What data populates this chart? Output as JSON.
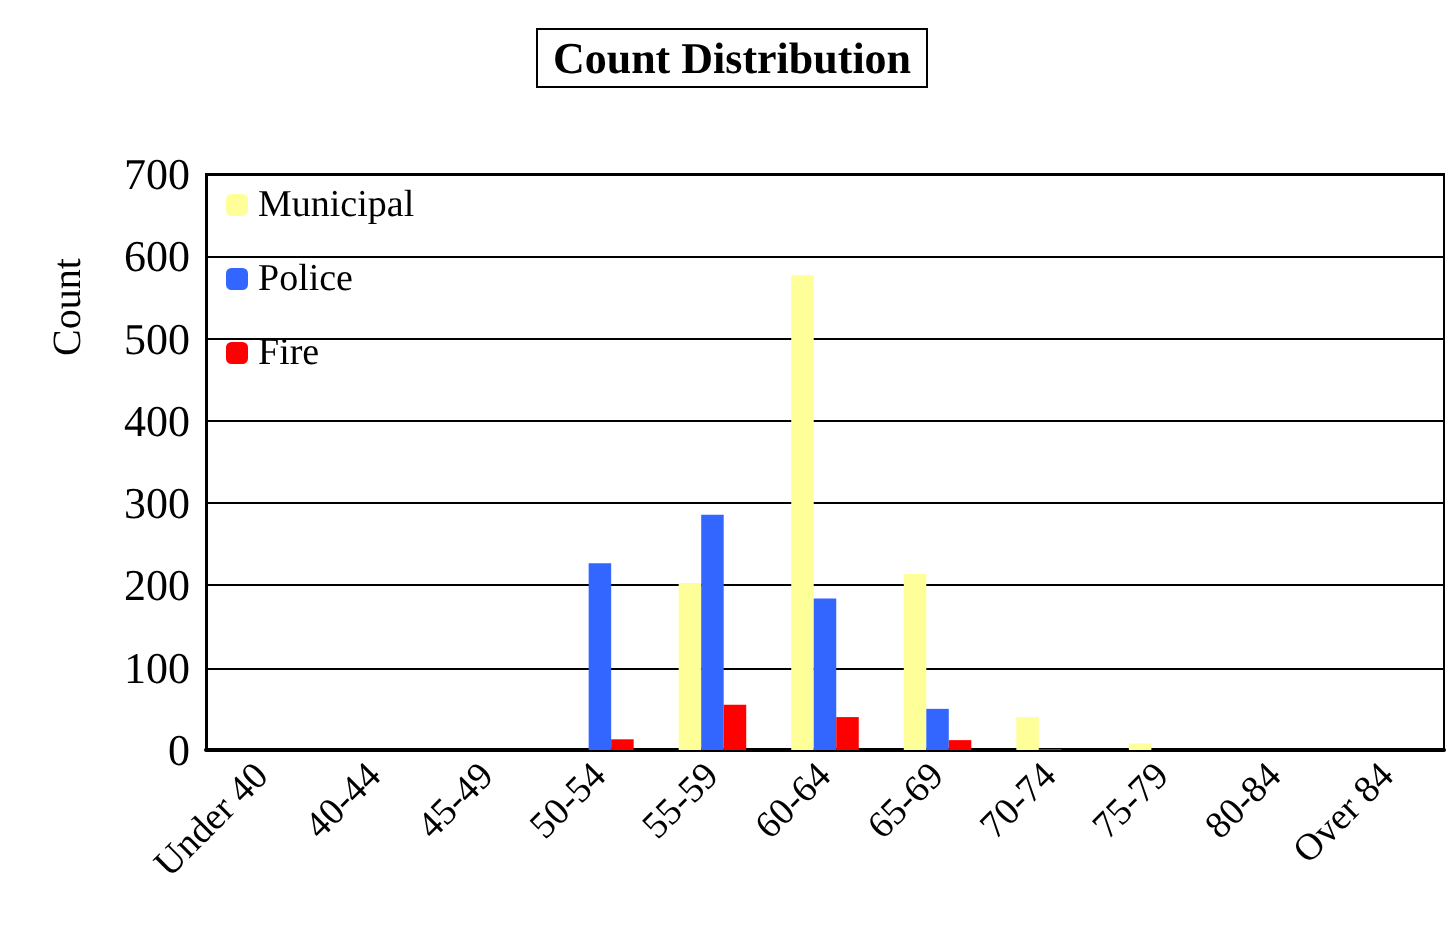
{
  "chart_data": {
    "type": "bar",
    "title": "Count Distribution",
    "ylabel": "Count",
    "categories": [
      "Under 40",
      "40-44",
      "45-49",
      "50-54",
      "55-59",
      "60-64",
      "65-69",
      "70-74",
      "75-79",
      "80-84",
      "Over 84"
    ],
    "series": [
      {
        "name": "Municipal",
        "color": "#ffff99",
        "values": [
          0,
          0,
          0,
          0,
          203,
          577,
          214,
          40,
          8,
          0,
          0
        ]
      },
      {
        "name": "Police",
        "color": "#3366ff",
        "values": [
          0,
          0,
          0,
          227,
          286,
          184,
          50,
          1,
          0,
          0,
          0
        ]
      },
      {
        "name": "Fire",
        "color": "#ff0000",
        "values": [
          0,
          0,
          0,
          13,
          55,
          40,
          12,
          0,
          0,
          0,
          0
        ]
      }
    ],
    "ylim": [
      0,
      700
    ],
    "yticks": [
      0,
      100,
      200,
      300,
      400,
      500,
      600,
      700
    ],
    "grid": "y",
    "legend": "top left"
  }
}
